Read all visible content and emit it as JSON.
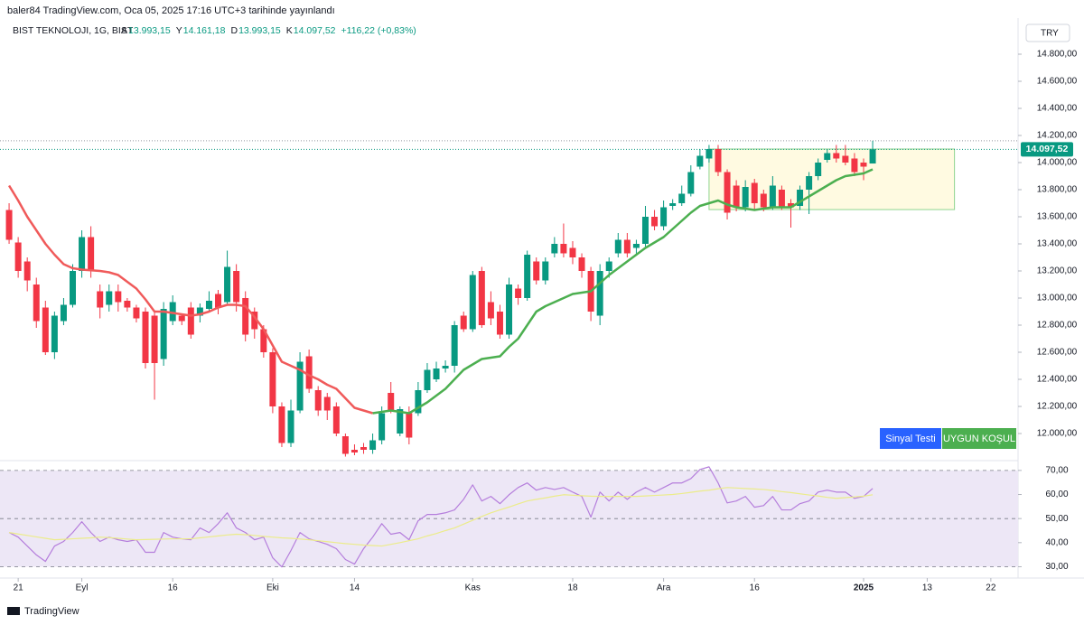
{
  "header": {
    "text": "baler84 TradingView.com, Oca 05, 2025 17:16 UTC+3 tarihinde yayınlandı"
  },
  "footer": {
    "logo": "TradingView"
  },
  "chart_data": [
    {
      "type": "candlestick",
      "title": "BIST TEKNOLOJI, 1G, BIST",
      "status_line": [
        {
          "label": "A",
          "value": "13.993,15"
        },
        {
          "label": "Y",
          "value": "14.161,18"
        },
        {
          "label": "D",
          "value": "13.993,15"
        },
        {
          "label": "K",
          "value": "14.097,52"
        },
        {
          "label": "",
          "value": "+116,22 (+0,83%)"
        }
      ],
      "currency": "TRY",
      "up_color": "#089981",
      "down_color": "#f23645",
      "open": [
        13650,
        13410,
        13270,
        13100,
        12930,
        12600,
        12830,
        12950,
        13200,
        13450,
        13050,
        12950,
        13050,
        12980,
        12930,
        12900,
        12870,
        12550,
        12830,
        12870,
        12930,
        12870,
        12920,
        13030,
        12970,
        13200,
        13000,
        12900,
        12770,
        12600,
        12200,
        11930,
        12170,
        12570,
        12320,
        12270,
        12200,
        11980,
        11880,
        11900,
        11880,
        11950,
        12300,
        12000,
        12150,
        12150,
        12320,
        12400,
        12480,
        12500,
        12870,
        12770,
        13200,
        12970,
        12900,
        12730,
        13070,
        13000,
        13270,
        13130,
        13330,
        13400,
        13370,
        13300,
        13200,
        12870,
        13200,
        13330,
        13430,
        13370,
        13400,
        13600,
        13530,
        13680,
        13700,
        13770,
        13970,
        14030,
        14100,
        13930,
        13830,
        13670,
        13850,
        13770,
        13670,
        13800,
        13700,
        13680,
        13800,
        13900,
        14020,
        14070,
        14050,
        14030,
        14000,
        13993.15
      ],
      "high": [
        13700,
        13450,
        13300,
        13150,
        12980,
        12900,
        13000,
        13250,
        13500,
        13530,
        13100,
        13100,
        13100,
        13000,
        12950,
        12930,
        12900,
        12970,
        13020,
        12880,
        12970,
        12960,
        13050,
        13060,
        13350,
        13250,
        13050,
        12930,
        12800,
        12630,
        12230,
        12250,
        12600,
        12620,
        12350,
        12300,
        12230,
        12000,
        11920,
        11930,
        12000,
        12200,
        12380,
        12200,
        12200,
        12380,
        12520,
        12530,
        12540,
        12830,
        12900,
        13200,
        13230,
        13050,
        12950,
        13150,
        13100,
        13350,
        13300,
        13300,
        13450,
        13550,
        13420,
        13330,
        13230,
        13250,
        13300,
        13480,
        13480,
        13430,
        13680,
        13650,
        13720,
        13730,
        13830,
        13980,
        14100,
        14130,
        14130,
        13950,
        13870,
        13870,
        13880,
        13800,
        13900,
        13830,
        13730,
        13830,
        13930,
        14030,
        14100,
        14130,
        14130,
        14070,
        14030,
        14161.18
      ],
      "low": [
        13400,
        13150,
        13050,
        12780,
        12580,
        12550,
        12800,
        12930,
        13150,
        13150,
        12850,
        12900,
        12900,
        12900,
        12820,
        12480,
        12250,
        12500,
        12800,
        12800,
        12700,
        12820,
        12900,
        12880,
        12950,
        12900,
        12680,
        12700,
        12560,
        12150,
        11900,
        11900,
        12150,
        12300,
        12130,
        12100,
        11980,
        11830,
        11840,
        11850,
        11850,
        11920,
        12150,
        11980,
        11920,
        12130,
        12300,
        12380,
        12450,
        12450,
        12750,
        12750,
        12780,
        12800,
        12700,
        12700,
        12950,
        12980,
        13100,
        13100,
        13300,
        13300,
        13250,
        13150,
        12830,
        12800,
        13150,
        13300,
        13300,
        13330,
        13380,
        13500,
        13500,
        13650,
        13680,
        13750,
        13950,
        14000,
        13900,
        13580,
        13640,
        13640,
        13650,
        13640,
        13650,
        13650,
        13520,
        13650,
        13620,
        13870,
        14000,
        14000,
        13980,
        13900,
        13870,
        13993.15
      ],
      "close": [
        13430,
        13200,
        13130,
        12830,
        12600,
        12870,
        12950,
        13200,
        13450,
        13200,
        12930,
        13050,
        12970,
        12930,
        12850,
        12520,
        12520,
        12920,
        12970,
        12830,
        12730,
        12930,
        12980,
        12930,
        13230,
        12970,
        12730,
        12770,
        12600,
        12200,
        11930,
        12170,
        12530,
        12330,
        12170,
        12170,
        12000,
        11850,
        11860,
        11880,
        11950,
        12150,
        12170,
        12180,
        11970,
        12320,
        12470,
        12480,
        12500,
        12800,
        12770,
        13170,
        12800,
        12850,
        12730,
        13100,
        13000,
        13320,
        13130,
        13270,
        13400,
        13330,
        13300,
        13200,
        12900,
        13200,
        13270,
        13430,
        13330,
        13400,
        13600,
        13530,
        13670,
        13700,
        13770,
        13930,
        14050,
        14100,
        13930,
        13630,
        13670,
        13820,
        13700,
        13670,
        13830,
        13670,
        13670,
        13800,
        13900,
        14000,
        14070,
        14030,
        14000,
        13930,
        13970,
        14097.52
      ],
      "series": [
        {
          "color": "#f05a5a",
          "values": [
            13830,
            13720,
            13600,
            13500,
            13400,
            13320,
            13250,
            13220,
            13210,
            13205,
            13200,
            13190,
            13170,
            13120,
            13070,
            12990,
            12900,
            12900,
            12890,
            12880,
            12870,
            12880,
            12900,
            12930,
            12950,
            12950,
            12940,
            12860,
            12770,
            12650,
            12530,
            12500,
            12470,
            12430,
            12400,
            12360,
            12330,
            12260,
            12190,
            12170,
            12150,
            null,
            null,
            null,
            null,
            null,
            null,
            null,
            null,
            null,
            null,
            null,
            null,
            null,
            null,
            null,
            null,
            null,
            null,
            null,
            null,
            null,
            null,
            null,
            null,
            null,
            null,
            null,
            null,
            null,
            null,
            null,
            null,
            null,
            null,
            null,
            null,
            null,
            null,
            null,
            null,
            null,
            null,
            null,
            null,
            null,
            null,
            null,
            null,
            null,
            null,
            null,
            null,
            null,
            null,
            null
          ]
        },
        {
          "color": "#4caf50",
          "values": [
            null,
            null,
            null,
            null,
            null,
            null,
            null,
            null,
            null,
            null,
            null,
            null,
            null,
            null,
            null,
            null,
            null,
            null,
            null,
            null,
            null,
            null,
            null,
            null,
            null,
            null,
            null,
            null,
            null,
            null,
            null,
            null,
            null,
            null,
            null,
            null,
            null,
            null,
            null,
            null,
            12150,
            12160,
            12170,
            12160,
            12150,
            12190,
            12230,
            12280,
            12330,
            12400,
            12470,
            12510,
            12550,
            12560,
            12570,
            12640,
            12700,
            12800,
            12900,
            12940,
            12970,
            13000,
            13030,
            13040,
            13050,
            13110,
            13170,
            13220,
            13270,
            13320,
            13370,
            13410,
            13450,
            13510,
            13570,
            13630,
            13680,
            13700,
            13720,
            13690,
            13670,
            13660,
            13650,
            13660,
            13670,
            13670,
            13670,
            13710,
            13750,
            13790,
            13830,
            13870,
            13900,
            13910,
            13920,
            13950
          ]
        }
      ],
      "last_price": {
        "value": 14097.52,
        "label": "14.097,52"
      },
      "high_line": 14161.18,
      "box": {
        "x": [
          77,
          104
        ],
        "y": [
          13653,
          14100
        ]
      },
      "buttons": [
        "Sinyal Testi",
        "UYGUN KOŞUL"
      ],
      "xlim": [
        -1,
        110
      ],
      "xticks": [
        {
          "value": 1,
          "label": "21"
        },
        {
          "value": 8,
          "label": "Eyl"
        },
        {
          "value": 18,
          "label": "16"
        },
        {
          "value": 29,
          "label": "Eki"
        },
        {
          "value": 38,
          "label": "14"
        },
        {
          "value": 51,
          "label": "Kas"
        },
        {
          "value": 62,
          "label": "18"
        },
        {
          "value": 72,
          "label": "Ara"
        },
        {
          "value": 82,
          "label": "16"
        },
        {
          "value": 94,
          "label": "2025"
        },
        {
          "value": 101,
          "label": "13"
        },
        {
          "value": 108,
          "label": "22"
        }
      ],
      "ylim": [
        11840,
        15100
      ],
      "yticks": [
        {
          "value": 12000,
          "label": "12.000,00"
        },
        {
          "value": 12200,
          "label": "12.200,00"
        },
        {
          "value": 12400,
          "label": "12.400,00"
        },
        {
          "value": 12600,
          "label": "12.600,00"
        },
        {
          "value": 12800,
          "label": "12.800,00"
        },
        {
          "value": 13000,
          "label": "13.000,00"
        },
        {
          "value": 13200,
          "label": "13.200,00"
        },
        {
          "value": 13400,
          "label": "13.400,00"
        },
        {
          "value": 13600,
          "label": "13.600,00"
        },
        {
          "value": 13800,
          "label": "13.800,00"
        },
        {
          "value": 14000,
          "label": "14.000,00"
        },
        {
          "value": 14200,
          "label": "14.200,00"
        },
        {
          "value": 14400,
          "label": "14.400,00"
        },
        {
          "value": 14600,
          "label": "14.600,00"
        },
        {
          "value": 14800,
          "label": "14.800,00"
        }
      ]
    },
    {
      "type": "line",
      "series": [
        {
          "color": "#b57edc",
          "values": [
            44.2,
            42.3,
            38.6,
            34.9,
            32.2,
            38.6,
            40.5,
            44.2,
            48.7,
            44.2,
            40.5,
            42.3,
            41.2,
            40.5,
            41.2,
            36.0,
            36.0,
            44.2,
            42.3,
            41.6,
            41.2,
            46.1,
            44.2,
            47.9,
            52.4,
            46.1,
            44.2,
            41.2,
            42.3,
            33.7,
            29.9,
            36.7,
            44.2,
            41.6,
            40.5,
            39.3,
            37.5,
            33.0,
            31.1,
            37.5,
            42.3,
            47.9,
            43.5,
            44.2,
            41.2,
            49.1,
            51.7,
            51.7,
            52.4,
            53.6,
            58.0,
            64.0,
            57.3,
            59.2,
            56.2,
            59.9,
            62.9,
            64.8,
            61.8,
            62.9,
            62.1,
            62.9,
            61.0,
            59.2,
            50.6,
            61.0,
            57.3,
            61.0,
            58.0,
            61.0,
            62.9,
            61.0,
            62.9,
            64.8,
            64.8,
            66.6,
            70.4,
            71.5,
            64.8,
            56.5,
            57.3,
            59.2,
            54.7,
            55.4,
            59.2,
            53.6,
            53.6,
            56.2,
            57.3,
            61.0,
            61.8,
            61.0,
            61.0,
            58.4,
            59.2,
            62.5
          ]
        },
        {
          "color": "#ecec8a",
          "values": [
            44.2,
            43.6,
            43.0,
            42.4,
            41.8,
            41.2,
            41.4,
            41.6,
            41.8,
            42.0,
            42.3,
            42.1,
            41.8,
            41.5,
            41.2,
            41.3,
            41.4,
            41.5,
            41.6,
            41.6,
            41.6,
            42.0,
            42.4,
            42.8,
            43.2,
            43.5,
            43.3,
            43.0,
            42.6,
            42.3,
            42.0,
            41.8,
            41.5,
            41.2,
            40.8,
            40.4,
            40.0,
            39.6,
            39.3,
            39.0,
            38.8,
            38.6,
            39.3,
            40.0,
            40.8,
            41.6,
            42.8,
            43.8,
            45.0,
            46.1,
            47.7,
            49.3,
            50.9,
            52.4,
            53.6,
            54.8,
            56.1,
            57.3,
            58.0,
            58.6,
            59.3,
            59.9,
            59.7,
            59.5,
            59.3,
            59.2,
            59.2,
            59.2,
            59.2,
            59.2,
            59.4,
            59.6,
            59.8,
            60.0,
            60.4,
            60.9,
            61.4,
            61.8,
            62.4,
            62.9,
            62.7,
            62.5,
            62.3,
            62.1,
            61.7,
            61.2,
            60.8,
            60.3,
            59.8,
            59.4,
            58.8,
            58.4,
            58.7,
            59.0,
            59.3,
            59.9
          ]
        }
      ],
      "levels": [
        30,
        50,
        70
      ],
      "band_color": "#ede7f6",
      "xlim": [
        -1,
        110
      ],
      "ylim": [
        25.3,
        72.2
      ],
      "yticks": [
        {
          "value": 30,
          "label": "30,00"
        },
        {
          "value": 40,
          "label": "40,00"
        },
        {
          "value": 50,
          "label": "50,00"
        },
        {
          "value": 60,
          "label": "60,00"
        },
        {
          "value": 70,
          "label": "70,00"
        }
      ]
    }
  ]
}
